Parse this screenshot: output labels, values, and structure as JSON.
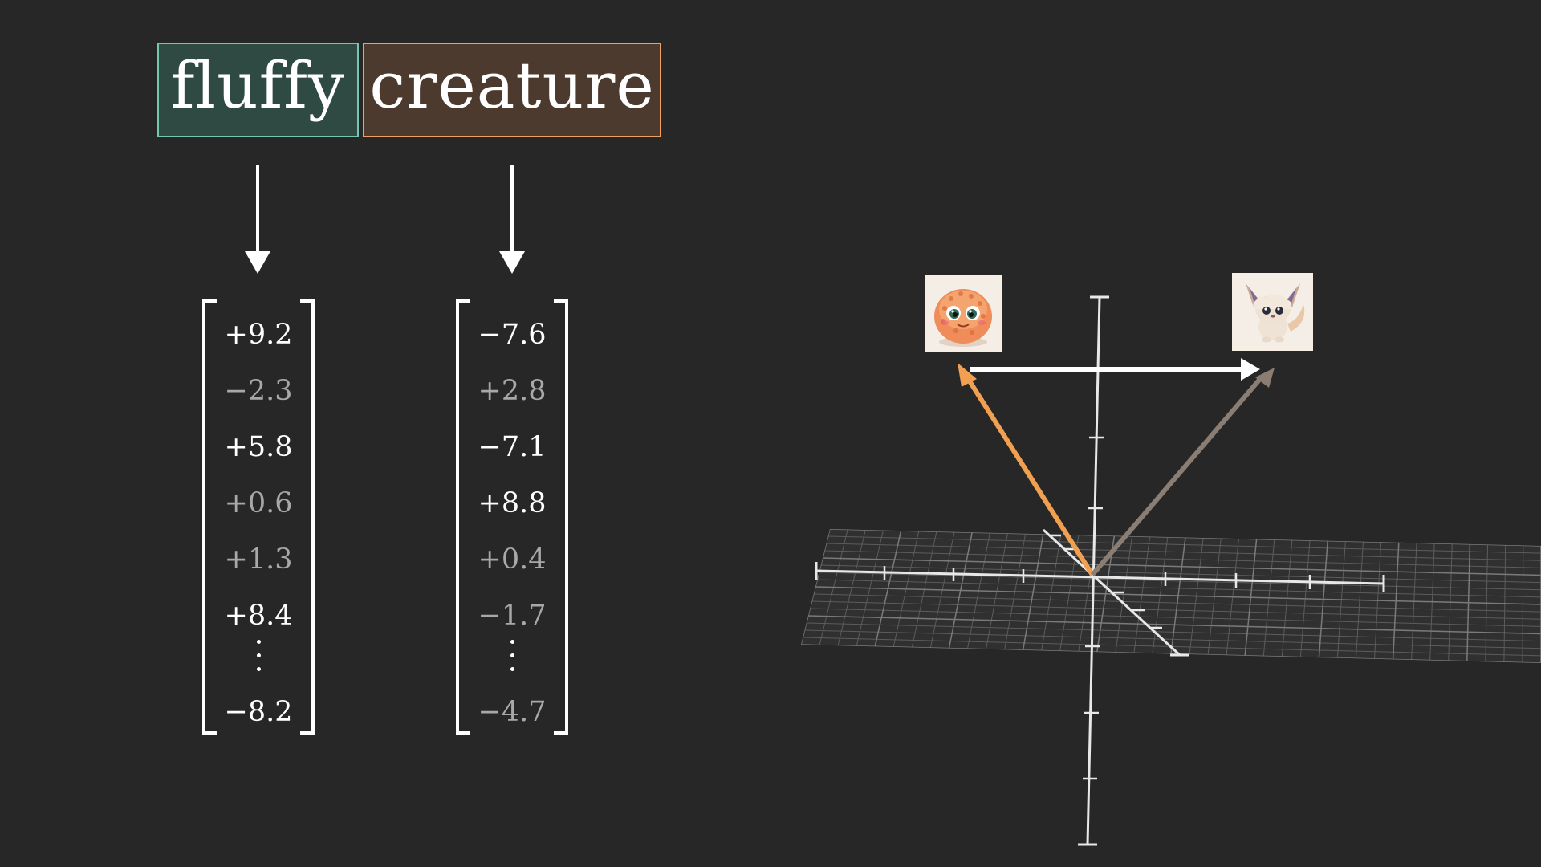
{
  "tokens": [
    {
      "word": "fluffy",
      "color": "#74c8b0"
    },
    {
      "word": "creature",
      "color": "#f0a060"
    }
  ],
  "vectors": {
    "fluffy": {
      "entries": [
        "+9.2",
        "−2.3",
        "+5.8",
        "+0.6",
        "+1.3",
        "+8.4"
      ],
      "last": "−8.2"
    },
    "creature": {
      "entries": [
        "−7.6",
        "+2.8",
        "−7.1",
        "+8.8",
        "+0.4",
        "−1.7"
      ],
      "last": "−4.7"
    }
  },
  "embedding_plot": {
    "vector_colors": {
      "creature": "#f0a050",
      "fluffy_creature": "#8a7d73",
      "fluffy_offset": "#ffffff"
    },
    "images": [
      {
        "icon": "round-blob-creature-icon"
      },
      {
        "icon": "fluffy-fox-creature-icon"
      }
    ]
  }
}
